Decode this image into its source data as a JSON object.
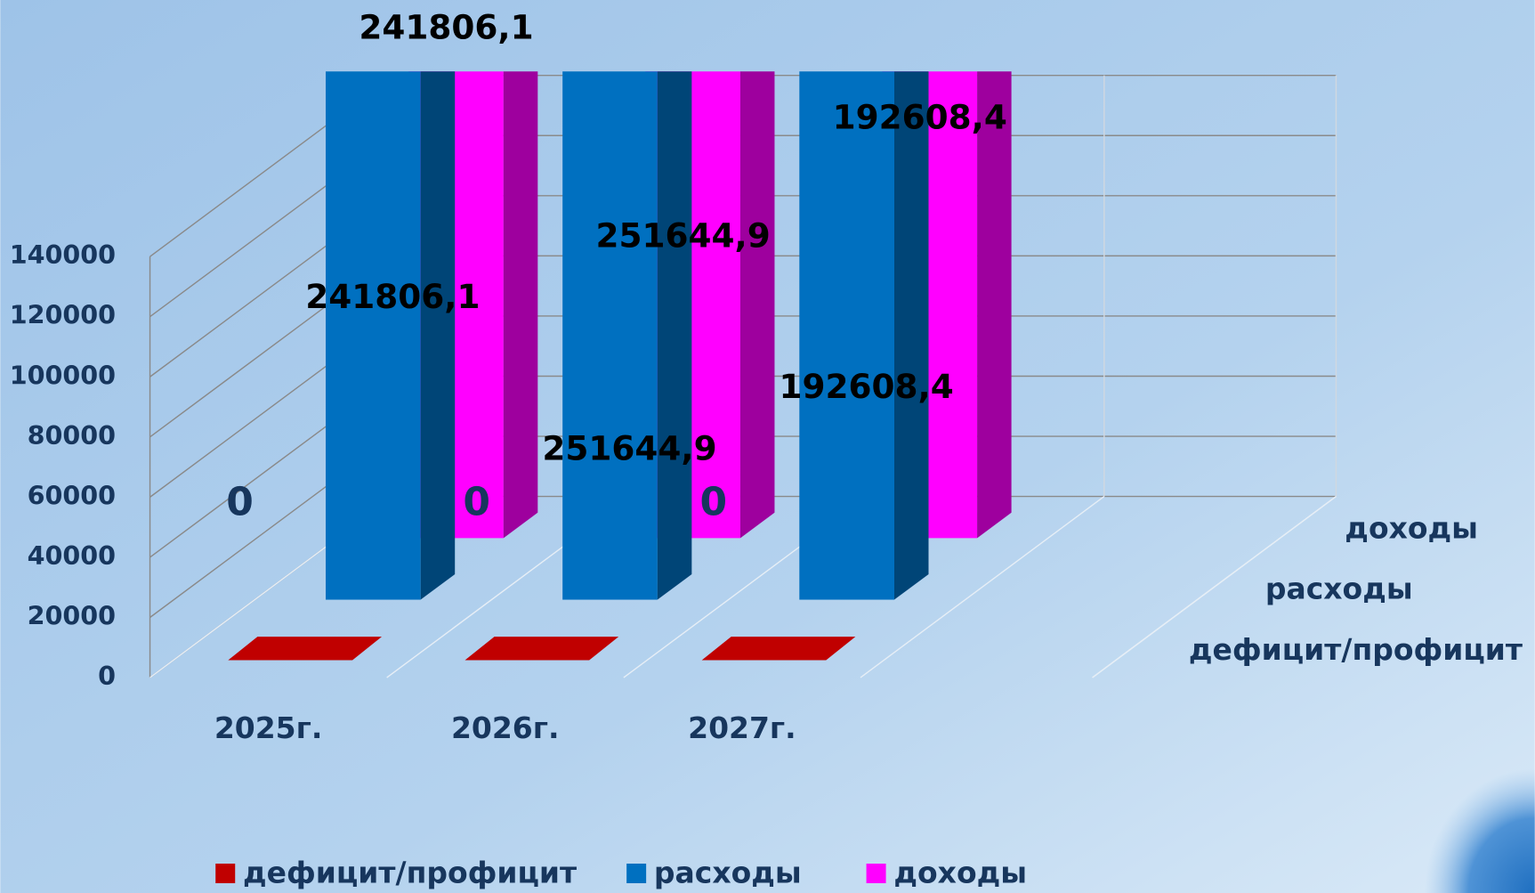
{
  "chart_data": {
    "type": "bar3d",
    "categories": [
      "2025г.",
      "2026г.",
      "2027г."
    ],
    "series": [
      {
        "name": "дефицит/профицит",
        "color": "#c00000",
        "values": [
          0,
          0,
          0
        ],
        "value_labels": [
          "0",
          "0",
          "0"
        ]
      },
      {
        "name": "расходы",
        "color": "#0070c0",
        "values": [
          241806.1,
          251644.9,
          192608.4
        ],
        "value_labels": [
          "241806,1",
          "251644,9",
          "192608,4"
        ]
      },
      {
        "name": "доходы",
        "color": "#ff00ff",
        "values": [
          241806.1,
          251644.9,
          192608.4
        ],
        "value_labels": [
          "241806,1",
          "251644,9",
          "192608,4"
        ]
      }
    ],
    "ylim": [
      0,
      140000
    ],
    "yticks": [
      0,
      20000,
      40000,
      60000,
      80000,
      100000,
      120000,
      140000
    ],
    "grid": true,
    "legend": "bottom"
  }
}
